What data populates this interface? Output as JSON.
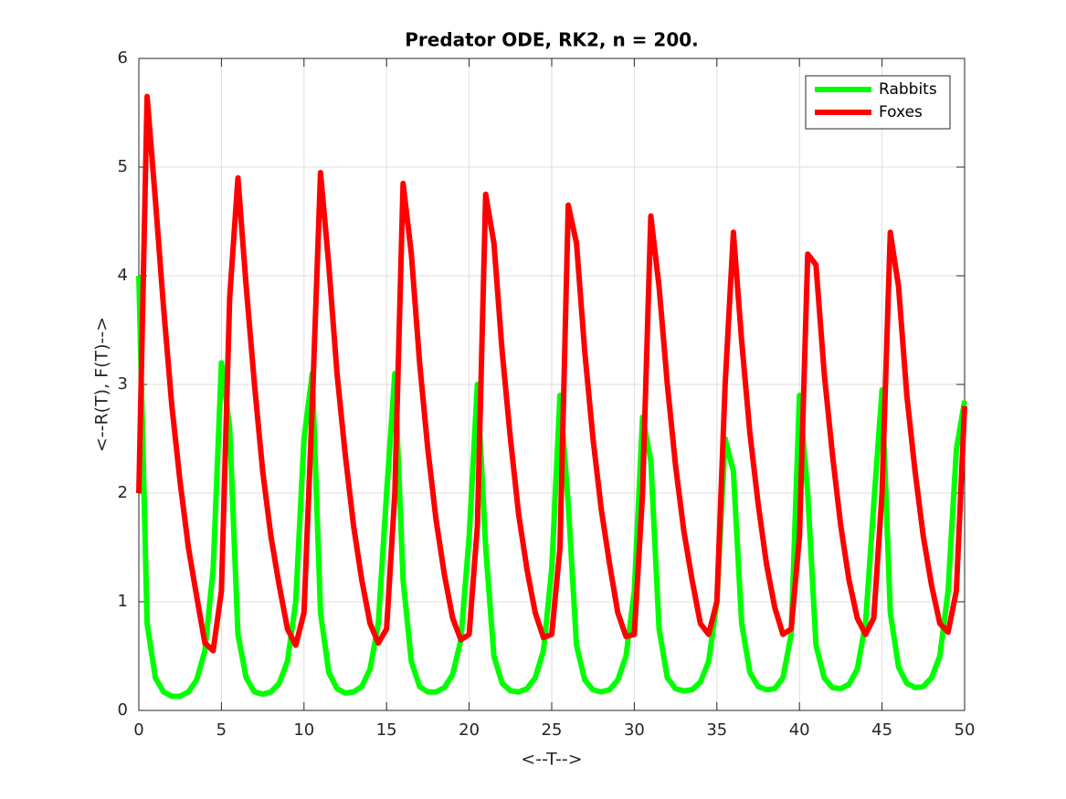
{
  "chart_data": {
    "type": "line",
    "title": "Predator ODE, RK2, n = 200.",
    "xlabel": "<--T-->",
    "ylabel": "<--R(T), F(T)-->",
    "x": [
      0,
      0.5,
      1,
      1.5,
      2,
      2.5,
      3,
      3.5,
      4,
      4.5,
      5,
      5.5,
      6,
      6.5,
      7,
      7.5,
      8,
      8.5,
      9,
      9.5,
      10,
      10.5,
      11,
      11.5,
      12,
      12.5,
      13,
      13.5,
      14,
      14.5,
      15,
      15.5,
      16,
      16.5,
      17,
      17.5,
      18,
      18.5,
      19,
      19.5,
      20,
      20.5,
      21,
      21.5,
      22,
      22.5,
      23,
      23.5,
      24,
      24.5,
      25,
      25.5,
      26,
      26.5,
      27,
      27.5,
      28,
      28.5,
      29,
      29.5,
      30,
      30.5,
      31,
      31.5,
      32,
      32.5,
      33,
      33.5,
      34,
      34.5,
      35,
      35.5,
      36,
      36.5,
      37,
      37.5,
      38,
      38.5,
      39,
      39.5,
      40,
      40.5,
      41,
      41.5,
      42,
      42.5,
      43,
      43.5,
      44,
      44.5,
      45,
      45.5,
      46,
      46.5,
      47,
      47.5,
      48,
      48.5,
      49,
      49.5,
      50
    ],
    "series": [
      {
        "name": "Rabbits",
        "color": "#00ff00",
        "values": [
          4.0,
          0.8,
          0.3,
          0.17,
          0.13,
          0.13,
          0.17,
          0.28,
          0.55,
          1.3,
          3.2,
          2.6,
          0.7,
          0.3,
          0.17,
          0.15,
          0.17,
          0.25,
          0.45,
          1.0,
          2.5,
          3.1,
          0.9,
          0.35,
          0.2,
          0.16,
          0.17,
          0.22,
          0.38,
          0.8,
          2.0,
          3.1,
          1.2,
          0.45,
          0.22,
          0.17,
          0.17,
          0.21,
          0.33,
          0.65,
          1.6,
          3.0,
          1.5,
          0.5,
          0.25,
          0.18,
          0.17,
          0.2,
          0.3,
          0.55,
          1.3,
          2.9,
          1.9,
          0.6,
          0.28,
          0.19,
          0.17,
          0.19,
          0.28,
          0.5,
          1.1,
          2.7,
          2.3,
          0.75,
          0.3,
          0.2,
          0.18,
          0.19,
          0.26,
          0.45,
          1.0,
          2.5,
          2.2,
          0.8,
          0.35,
          0.22,
          0.19,
          0.2,
          0.3,
          0.7,
          2.9,
          2.0,
          0.6,
          0.3,
          0.21,
          0.2,
          0.24,
          0.38,
          0.8,
          1.9,
          2.95,
          0.9,
          0.4,
          0.25,
          0.21,
          0.22,
          0.3,
          0.5,
          1.1,
          2.4,
          2.85
        ]
      },
      {
        "name": "Foxes",
        "color": "#ff0000",
        "values": [
          2.0,
          5.65,
          4.7,
          3.7,
          2.8,
          2.1,
          1.5,
          1.05,
          0.62,
          0.55,
          1.1,
          3.8,
          4.9,
          3.9,
          3.0,
          2.2,
          1.6,
          1.15,
          0.75,
          0.6,
          0.9,
          2.8,
          4.95,
          4.1,
          3.1,
          2.35,
          1.7,
          1.2,
          0.8,
          0.62,
          0.75,
          2.0,
          4.85,
          4.2,
          3.2,
          2.4,
          1.75,
          1.25,
          0.85,
          0.65,
          0.7,
          1.7,
          4.75,
          4.3,
          3.3,
          2.5,
          1.8,
          1.3,
          0.9,
          0.67,
          0.7,
          1.5,
          4.65,
          4.3,
          3.3,
          2.5,
          1.85,
          1.35,
          0.9,
          0.68,
          0.7,
          2.0,
          4.55,
          3.9,
          3.0,
          2.25,
          1.65,
          1.2,
          0.8,
          0.7,
          1.0,
          3.0,
          4.4,
          3.4,
          2.55,
          1.9,
          1.35,
          0.95,
          0.7,
          0.75,
          1.6,
          4.2,
          4.1,
          3.1,
          2.35,
          1.7,
          1.2,
          0.85,
          0.7,
          0.85,
          2.0,
          4.4,
          3.9,
          2.9,
          2.2,
          1.6,
          1.15,
          0.8,
          0.72,
          1.1,
          2.8
        ]
      }
    ],
    "xlim": [
      0,
      50
    ],
    "xticks": [
      0,
      5,
      10,
      15,
      20,
      25,
      30,
      35,
      40,
      45,
      50
    ],
    "ylim": [
      0,
      6
    ],
    "yticks": [
      0,
      1,
      2,
      3,
      4,
      5,
      6
    ],
    "grid": true,
    "legend": "upper right"
  }
}
